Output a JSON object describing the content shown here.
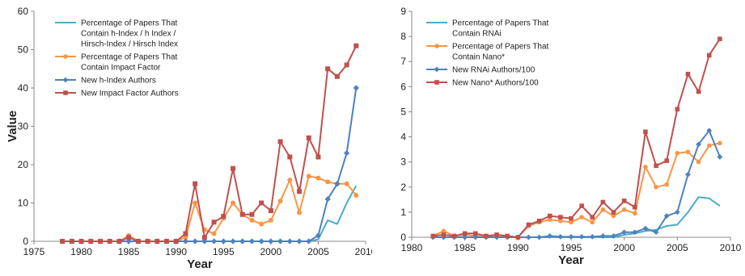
{
  "chart_data": [
    {
      "type": "line",
      "xlabel": "Year",
      "ylabel": "Value",
      "xlim": [
        1975,
        2010
      ],
      "ylim": [
        0,
        60
      ],
      "xticks": [
        1975,
        1980,
        1985,
        1990,
        1995,
        2000,
        2005,
        2010
      ],
      "yticks": [
        0,
        10,
        20,
        30,
        40,
        50,
        60
      ],
      "legend_position": "top-left",
      "x": [
        1978,
        1979,
        1980,
        1981,
        1982,
        1983,
        1984,
        1985,
        1986,
        1987,
        1988,
        1989,
        1990,
        1991,
        1992,
        1993,
        1994,
        1995,
        1996,
        1997,
        1998,
        1999,
        2000,
        2001,
        2002,
        2003,
        2004,
        2005,
        2006,
        2007,
        2008,
        2009
      ],
      "series": [
        {
          "name": "Percentage of Papers That Contain h-Index / h Index / Hirsch-Index / Hirsch Index",
          "color": "#4bacc6",
          "marker": "line",
          "values": [
            0,
            0,
            0,
            0,
            0,
            0,
            0,
            0,
            0,
            0,
            0,
            0,
            0,
            0,
            0,
            0,
            0,
            0,
            0,
            0,
            0,
            0,
            0,
            0,
            0,
            0,
            0,
            0.5,
            5.5,
            4.5,
            10,
            14.5
          ]
        },
        {
          "name": "Percentage of Papers That Contain Impact Factor",
          "color": "#f79646",
          "marker": "circle",
          "values": [
            0,
            0,
            0,
            0,
            0,
            0,
            0,
            1.5,
            0,
            0,
            0,
            0,
            0,
            1,
            10,
            3,
            2,
            6,
            10,
            7,
            5.5,
            4.5,
            5.5,
            10.5,
            16,
            7.5,
            17,
            16.5,
            15.5,
            15,
            15,
            12
          ]
        },
        {
          "name": "New h-Index Authors",
          "color": "#4f81bd",
          "marker": "diamond",
          "values": [
            0,
            0,
            0,
            0,
            0,
            0,
            0,
            0,
            0,
            0,
            0,
            0,
            0,
            0,
            0,
            0,
            0,
            0,
            0,
            0,
            0,
            0,
            0,
            0,
            0,
            0,
            0,
            1.5,
            11,
            15,
            23,
            40
          ]
        },
        {
          "name": "New Impact Factor Authors",
          "color": "#c0504d",
          "marker": "square",
          "values": [
            0,
            0,
            0,
            0,
            0,
            0,
            0,
            1,
            0,
            0,
            0,
            0,
            0,
            2,
            15,
            1,
            5,
            6.5,
            19,
            7,
            7,
            10,
            8,
            26,
            22,
            13,
            27,
            22,
            45,
            43,
            46,
            51
          ]
        }
      ]
    },
    {
      "type": "line",
      "xlabel": "Year",
      "ylabel": "",
      "xlim": [
        1980,
        2010
      ],
      "ylim": [
        0,
        9
      ],
      "xticks": [
        1980,
        1985,
        1990,
        1995,
        2000,
        2005,
        2010
      ],
      "yticks": [
        0,
        1,
        2,
        3,
        4,
        5,
        6,
        7,
        8,
        9
      ],
      "legend_position": "top-left",
      "x": [
        1982,
        1983,
        1984,
        1985,
        1986,
        1987,
        1988,
        1989,
        1990,
        1991,
        1992,
        1993,
        1994,
        1995,
        1996,
        1997,
        1998,
        1999,
        2000,
        2001,
        2002,
        2003,
        2004,
        2005,
        2006,
        2007,
        2008,
        2009
      ],
      "series": [
        {
          "name": "Percentage of Papers That Contain RNAi",
          "color": "#4bacc6",
          "marker": "line",
          "values": [
            0,
            0,
            0,
            0,
            0,
            0,
            0,
            0,
            0,
            0,
            0,
            0,
            0,
            0,
            0,
            0,
            0,
            0,
            0.1,
            0.15,
            0.25,
            0.3,
            0.45,
            0.5,
            1.0,
            1.6,
            1.55,
            1.25
          ]
        },
        {
          "name": "Percentage of Papers That Contain Nano*",
          "color": "#f79646",
          "marker": "circle",
          "values": [
            0.05,
            0.25,
            0.05,
            0.1,
            0.05,
            0.02,
            0.02,
            0.02,
            0,
            0.45,
            0.6,
            0.7,
            0.65,
            0.6,
            0.8,
            0.6,
            1.1,
            0.85,
            1.1,
            0.95,
            2.8,
            2.0,
            2.1,
            3.35,
            3.4,
            3.0,
            3.65,
            3.75
          ]
        },
        {
          "name": "New RNAi Authors/100",
          "color": "#4f81bd",
          "marker": "diamond",
          "values": [
            0,
            0,
            0,
            0,
            0,
            0,
            0,
            0,
            0,
            0,
            0,
            0.05,
            0.02,
            0.02,
            0.02,
            0.02,
            0.05,
            0.05,
            0.2,
            0.2,
            0.35,
            0.2,
            0.85,
            1.0,
            2.5,
            3.7,
            4.25,
            3.2
          ]
        },
        {
          "name": "New Nano* Authors/100",
          "color": "#c0504d",
          "marker": "square",
          "values": [
            0.05,
            0.1,
            0.05,
            0.15,
            0.15,
            0.05,
            0.1,
            0.05,
            0,
            0.5,
            0.65,
            0.85,
            0.8,
            0.75,
            1.25,
            0.8,
            1.4,
            1.0,
            1.45,
            1.2,
            4.2,
            2.85,
            3.05,
            5.1,
            6.5,
            5.8,
            7.25,
            7.9
          ]
        }
      ]
    }
  ],
  "legends": [
    [
      {
        "lines": [
          "Percentage of Papers That",
          "Contain h-Index / h Index /",
          "Hirsch-Index / Hirsch Index"
        ]
      },
      {
        "lines": [
          "Percentage of Papers That",
          "Contain Impact Factor"
        ]
      },
      {
        "lines": [
          "New h-Index Authors"
        ]
      },
      {
        "lines": [
          "New Impact Factor Authors"
        ]
      }
    ],
    [
      {
        "lines": [
          "Percentage of Papers That",
          "Contain RNAi"
        ]
      },
      {
        "lines": [
          "Percentage of Papers That",
          "Contain Nano*"
        ]
      },
      {
        "lines": [
          "New RNAi Authors/100"
        ]
      },
      {
        "lines": [
          "New Nano* Authors/100"
        ]
      }
    ]
  ]
}
